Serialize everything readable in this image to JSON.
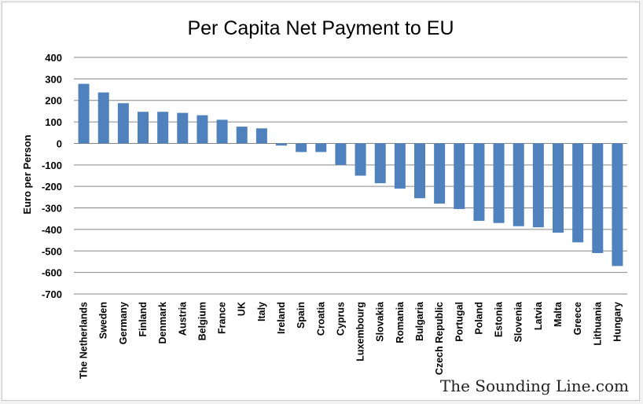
{
  "chart_data": {
    "type": "bar",
    "title": "Per Capita Net Payment to EU",
    "xlabel": "",
    "ylabel": "Euro per Person",
    "ylim": [
      -700,
      400
    ],
    "yticks": [
      400,
      300,
      200,
      100,
      0,
      -100,
      -200,
      -300,
      -400,
      -500,
      -600,
      -700
    ],
    "grid": true,
    "legend": "none",
    "categories": [
      "The Netherlands",
      "Sweden",
      "Germany",
      "Finland",
      "Denmark",
      "Austria",
      "Belgium",
      "France",
      "UK",
      "Italy",
      "Ireland",
      "Spain",
      "Croatia",
      "Cyprus",
      "Luxembourg",
      "Slovakia",
      "Romania",
      "Bulgaria",
      "Czech Republic",
      "Portugal",
      "Poland",
      "Estonia",
      "Slovenia",
      "Latvia",
      "Malta",
      "Greece",
      "Lithuania",
      "Hungary"
    ],
    "values": [
      277,
      237,
      187,
      147,
      147,
      142,
      131,
      110,
      78,
      70,
      -10,
      -40,
      -40,
      -100,
      -150,
      -185,
      -210,
      -255,
      -280,
      -305,
      -360,
      -370,
      -385,
      -390,
      -415,
      -460,
      -510,
      -570
    ],
    "colors": {
      "bar": "#4f81bd",
      "grid": "#868686",
      "background": "#ffffff"
    }
  },
  "watermark": "The Sounding Line.com"
}
